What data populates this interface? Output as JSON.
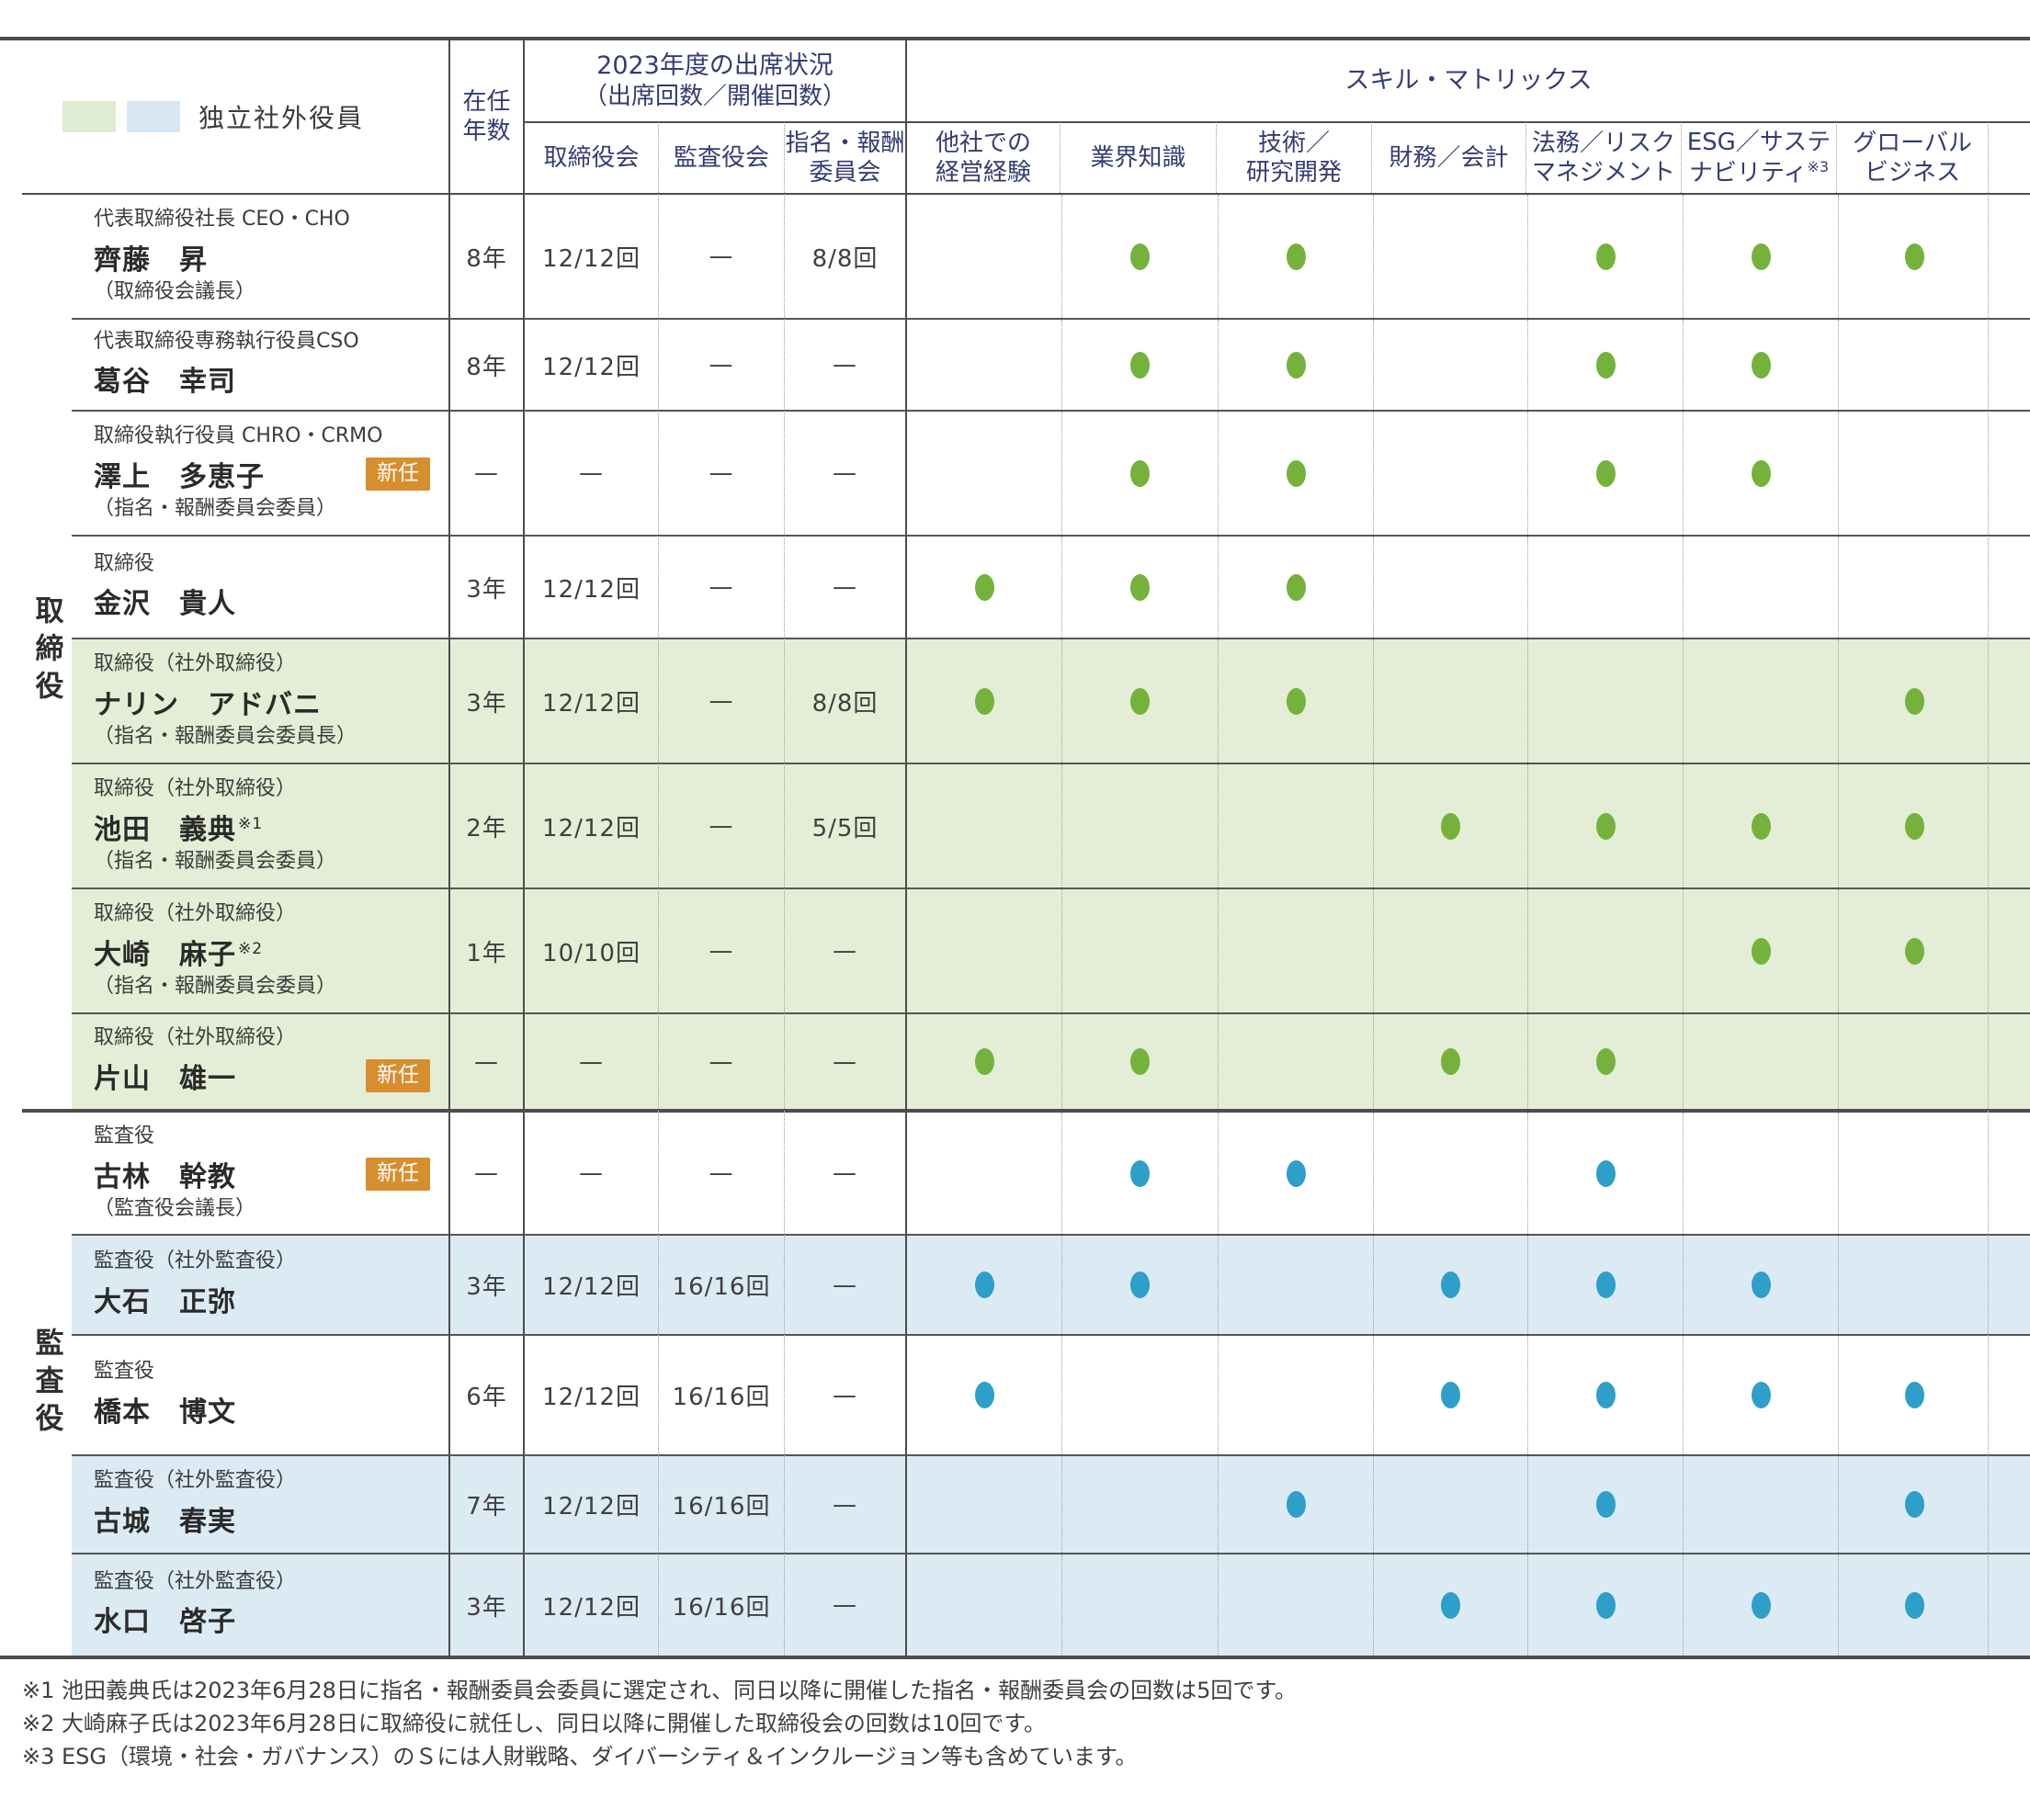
{
  "colors": {
    "header_text": "#333d73",
    "green_dot": "#74b23c",
    "blue_dot": "#2d9fc8",
    "green_row_bg": "#e4eed6",
    "blue_row_bg": "#dceaf4",
    "badge_bg": "#d78e2e",
    "legend_green": "#dfecd2",
    "legend_blue": "#d8e8f3"
  },
  "legend": {
    "label": "独立社外役員"
  },
  "header": {
    "tenure": {
      "line1": "在任",
      "line2": "年数"
    },
    "attendance": {
      "title": "2023年度の出席状況",
      "subtitle": "（出席回数／開催回数）",
      "cols": [
        {
          "line1": "取締役会",
          "line2": ""
        },
        {
          "line1": "監査役会",
          "line2": ""
        },
        {
          "line1": "指名・報酬",
          "line2": "委員会"
        }
      ]
    },
    "skills": {
      "title": "スキル・マトリックス",
      "cols": [
        {
          "line1": "他社での",
          "line2": "経営経験",
          "sup": ""
        },
        {
          "line1": "業界知識",
          "line2": "",
          "sup": ""
        },
        {
          "line1": "技術／",
          "line2": "研究開発",
          "sup": ""
        },
        {
          "line1": "財務／会計",
          "line2": "",
          "sup": ""
        },
        {
          "line1": "法務／リスク",
          "line2": "マネジメント",
          "sup": ""
        },
        {
          "line1": "ESG／サステ",
          "line2": "ナビリティ",
          "sup": "※3"
        },
        {
          "line1": "グローバル",
          "line2": "ビジネス",
          "sup": ""
        }
      ]
    }
  },
  "groups": [
    {
      "label": "取締役"
    },
    {
      "label": "監査役"
    }
  ],
  "rows": [
    {
      "title": "代表取締役社長 CEO・CHO",
      "name": "齊藤　昇",
      "subtitle": "（取締役会議長）",
      "tenure": "8年",
      "board": "12/12回",
      "audit": "—",
      "nomination": "8/8回",
      "highlight": null,
      "dot": "green",
      "skills": [
        0,
        1,
        1,
        0,
        1,
        1,
        1
      ]
    },
    {
      "title": "代表取締役専務執行役員CSO",
      "name": "葛谷　幸司",
      "subtitle": "",
      "tenure": "8年",
      "board": "12/12回",
      "audit": "—",
      "nomination": "—",
      "highlight": null,
      "dot": "green",
      "skills": [
        0,
        1,
        1,
        0,
        1,
        1,
        0
      ]
    },
    {
      "title": "取締役執行役員 CHRO・CRMO",
      "name": "澤上　多恵子",
      "badge": "新任",
      "subtitle": "（指名・報酬委員会委員）",
      "tenure": "—",
      "board": "—",
      "audit": "—",
      "nomination": "—",
      "highlight": null,
      "dot": "green",
      "skills": [
        0,
        1,
        1,
        0,
        1,
        1,
        0
      ]
    },
    {
      "title": "取締役",
      "name": "金沢　貴人",
      "subtitle": "",
      "tenure": "3年",
      "board": "12/12回",
      "audit": "—",
      "nomination": "—",
      "highlight": null,
      "dot": "green",
      "skills": [
        1,
        1,
        1,
        0,
        0,
        0,
        0
      ]
    },
    {
      "title": "取締役（社外取締役）",
      "name": "ナリン　アドバニ",
      "subtitle": "（指名・報酬委員会委員長）",
      "tenure": "3年",
      "board": "12/12回",
      "audit": "—",
      "nomination": "8/8回",
      "highlight": "green",
      "dot": "green",
      "skills": [
        1,
        1,
        1,
        0,
        0,
        0,
        1
      ]
    },
    {
      "title": "取締役（社外取締役）",
      "name": "池田　義典",
      "name_sup": "※1",
      "subtitle": "（指名・報酬委員会委員）",
      "tenure": "2年",
      "board": "12/12回",
      "audit": "—",
      "nomination": "5/5回",
      "highlight": "green",
      "dot": "green",
      "skills": [
        0,
        0,
        0,
        1,
        1,
        1,
        1
      ]
    },
    {
      "title": "取締役（社外取締役）",
      "name": "大崎　麻子",
      "name_sup": "※2",
      "subtitle": "（指名・報酬委員会委員）",
      "tenure": "1年",
      "board": "10/10回",
      "audit": "—",
      "nomination": "—",
      "highlight": "green",
      "dot": "green",
      "skills": [
        0,
        0,
        0,
        0,
        0,
        1,
        1
      ]
    },
    {
      "title": "取締役（社外取締役）",
      "name": "片山　雄一",
      "badge": "新任",
      "subtitle": "",
      "tenure": "—",
      "board": "—",
      "audit": "—",
      "nomination": "—",
      "highlight": "green",
      "dot": "green",
      "skills": [
        1,
        1,
        0,
        1,
        1,
        0,
        0
      ]
    },
    {
      "title": "監査役",
      "name": "古林　幹教",
      "badge": "新任",
      "subtitle": "（監査役会議長）",
      "tenure": "—",
      "board": "—",
      "audit": "—",
      "nomination": "—",
      "highlight": null,
      "dot": "blue",
      "skills": [
        0,
        1,
        1,
        0,
        1,
        0,
        0
      ]
    },
    {
      "title": "監査役（社外監査役）",
      "name": "大石　正弥",
      "subtitle": "",
      "tenure": "3年",
      "board": "12/12回",
      "audit": "16/16回",
      "nomination": "—",
      "highlight": "blue",
      "dot": "blue",
      "skills": [
        1,
        1,
        0,
        1,
        1,
        1,
        0
      ]
    },
    {
      "title": "監査役",
      "name": "橋本　博文",
      "subtitle": "",
      "tenure": "6年",
      "board": "12/12回",
      "audit": "16/16回",
      "nomination": "—",
      "highlight": null,
      "dot": "blue",
      "skills": [
        1,
        0,
        0,
        1,
        1,
        1,
        1
      ]
    },
    {
      "title": "監査役（社外監査役）",
      "name": "古城　春実",
      "subtitle": "",
      "tenure": "7年",
      "board": "12/12回",
      "audit": "16/16回",
      "nomination": "—",
      "highlight": "blue",
      "dot": "blue",
      "skills": [
        0,
        0,
        1,
        0,
        1,
        0,
        1
      ]
    },
    {
      "title": "監査役（社外監査役）",
      "name": "水口　啓子",
      "subtitle": "",
      "tenure": "3年",
      "board": "12/12回",
      "audit": "16/16回",
      "nomination": "—",
      "highlight": "blue",
      "dot": "blue",
      "skills": [
        0,
        0,
        0,
        1,
        1,
        1,
        1
      ]
    }
  ],
  "footnotes": [
    "※1 池田義典氏は2023年6月28日に指名・報酬委員会委員に選定され、同日以降に開催した指名・報酬委員会の回数は5回です。",
    "※2 大崎麻子氏は2023年6月28日に取締役に就任し、同日以降に開催した取締役会の回数は10回です。",
    "※3 ESG（環境・社会・ガバナンス）のＳには人財戦略、ダイバーシティ＆インクルージョン等も含めています。"
  ]
}
